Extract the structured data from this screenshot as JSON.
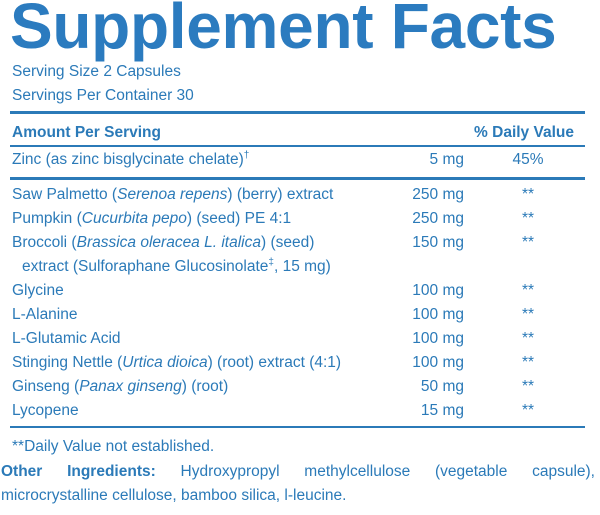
{
  "title": "Supplement Facts",
  "serving": [
    "Serving Size 2 Capsules",
    "Servings Per Container 30"
  ],
  "header": {
    "amount": "Amount Per Serving",
    "daily_value": "% Daily Value"
  },
  "rows": [
    {
      "lines": [
        [
          {
            "text": "Zinc (as zinc bisglycinate chelate)"
          },
          {
            "text": "†",
            "style": "sup"
          }
        ]
      ],
      "amount": "5 mg",
      "dv": "45%"
    },
    {
      "lines": [
        [
          {
            "text": "Saw Palmetto ("
          },
          {
            "text": "Serenoa repens",
            "style": "italic"
          },
          {
            "text": ") (berry) extract"
          }
        ]
      ],
      "amount": "250 mg",
      "dv": "**"
    },
    {
      "lines": [
        [
          {
            "text": "Pumpkin ("
          },
          {
            "text": "Cucurbita pepo",
            "style": "italic"
          },
          {
            "text": ") (seed) PE 4:1"
          }
        ]
      ],
      "amount": "250 mg",
      "dv": "**"
    },
    {
      "lines": [
        [
          {
            "text": "Broccoli ("
          },
          {
            "text": "Brassica oleracea L. italica",
            "style": "italic"
          },
          {
            "text": ") (seed)"
          }
        ],
        [
          {
            "text": "extract (Sulforaphane Glucosinolate"
          },
          {
            "text": "‡",
            "style": "sup"
          },
          {
            "text": ", 15 mg)"
          }
        ]
      ],
      "amount": "150 mg",
      "dv": "**"
    },
    {
      "lines": [
        [
          {
            "text": "Glycine"
          }
        ]
      ],
      "amount": "100 mg",
      "dv": "**"
    },
    {
      "lines": [
        [
          {
            "text": "L-Alanine"
          }
        ]
      ],
      "amount": "100 mg",
      "dv": "**"
    },
    {
      "lines": [
        [
          {
            "text": "L-Glutamic Acid"
          }
        ]
      ],
      "amount": "100 mg",
      "dv": "**"
    },
    {
      "lines": [
        [
          {
            "text": "Stinging Nettle ("
          },
          {
            "text": "Urtica dioica",
            "style": "italic"
          },
          {
            "text": ") (root) extract (4:1)"
          }
        ]
      ],
      "amount": "100 mg",
      "dv": "**"
    },
    {
      "lines": [
        [
          {
            "text": "Ginseng ("
          },
          {
            "text": "Panax ginseng",
            "style": "italic"
          },
          {
            "text": ") (root)"
          }
        ]
      ],
      "amount": "50 mg",
      "dv": "**"
    },
    {
      "lines": [
        [
          {
            "text": "Lycopene"
          }
        ]
      ],
      "amount": "15 mg",
      "dv": "**"
    }
  ],
  "footnote": "**Daily Value not established.",
  "other_ingredients": {
    "label": "Other Ingredients:",
    "text": "Hydroxypropyl methylcellulose (vegetable capsule), microcrystalline cellulose, bamboo silica, l-leucine."
  }
}
